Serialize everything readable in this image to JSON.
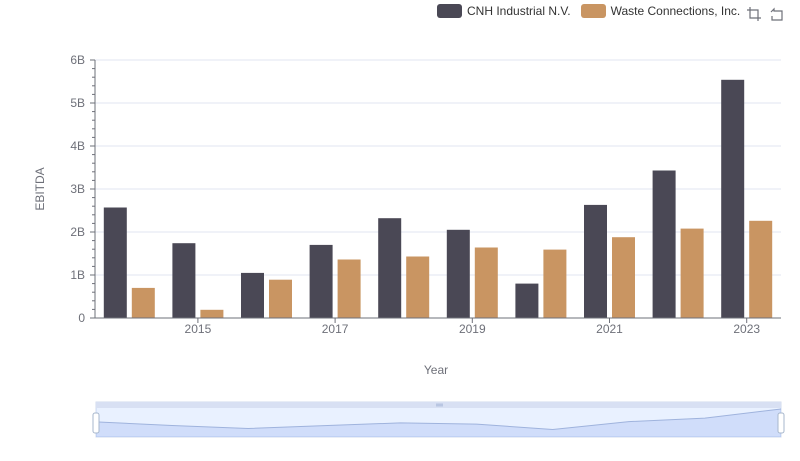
{
  "legend": {
    "items": [
      {
        "label": "CNH Industrial N.V.",
        "color": "#4a4855"
      },
      {
        "label": "Waste Connections, Inc.",
        "color": "#c99562"
      }
    ]
  },
  "toolbox": {
    "icons": [
      "zoom-icon",
      "restore-icon"
    ]
  },
  "chart_data": {
    "type": "bar",
    "xlabel": "Year",
    "ylabel": "EBITDA",
    "categories": [
      "2014",
      "2015",
      "2016",
      "2017",
      "2018",
      "2019",
      "2020",
      "2021",
      "2022",
      "2023"
    ],
    "x_tick_labels": [
      "2015",
      "2017",
      "2019",
      "2021",
      "2023"
    ],
    "y_tick_labels": [
      "0",
      "1B",
      "2B",
      "3B",
      "4B",
      "5B",
      "6B"
    ],
    "ylim": [
      0,
      6000000000
    ],
    "series": [
      {
        "name": "CNH Industrial N.V.",
        "color": "#4a4855",
        "values": [
          2570000000,
          1740000000,
          1050000000,
          1700000000,
          2320000000,
          2050000000,
          800000000,
          2630000000,
          3430000000,
          5540000000
        ]
      },
      {
        "name": "Waste Connections, Inc.",
        "color": "#c99562",
        "values": [
          700000000,
          190000000,
          890000000,
          1360000000,
          1430000000,
          1640000000,
          1590000000,
          1880000000,
          2080000000,
          2260000000
        ]
      }
    ],
    "grid": true,
    "legend_position": "top-right",
    "datazoom": {
      "range": [
        0,
        100
      ]
    }
  }
}
